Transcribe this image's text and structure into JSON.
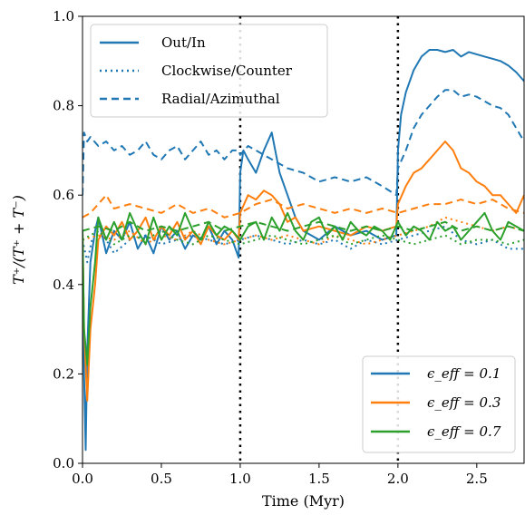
{
  "chart_data": {
    "type": "line",
    "xlabel": "Time (Myr)",
    "ylabel": "T⁺/(T⁺ + T⁻)",
    "xlim": [
      0,
      2.8
    ],
    "ylim": [
      0,
      1.0
    ],
    "x_ticks": [
      "0.0",
      "0.5",
      "1.0",
      "1.5",
      "2.0",
      "2.5"
    ],
    "y_ticks": [
      "0.0",
      "0.2",
      "0.4",
      "0.6",
      "0.8",
      "1.0"
    ],
    "grid": false,
    "vlines": [
      1.0,
      2.0
    ],
    "style_legend": {
      "placement": "top-left",
      "entries": [
        {
          "label": "Out/In",
          "dash": "solid"
        },
        {
          "label": "Clockwise/Counter",
          "dash": "dotted"
        },
        {
          "label": "Radial/Azimuthal",
          "dash": "dashed"
        }
      ]
    },
    "color_legend": {
      "placement": "bottom-right",
      "entries": [
        {
          "label": "ϵ_eff = 0.1",
          "color": "#1f77b4"
        },
        {
          "label": "ϵ_eff = 0.3",
          "color": "#ff7f0e"
        },
        {
          "label": "ϵ_eff = 0.7",
          "color": "#2ca02c"
        }
      ]
    },
    "series": [
      {
        "color": "#1f77b4",
        "dash": "solid",
        "x": [
          0.0,
          0.01,
          0.02,
          0.03,
          0.05,
          0.08,
          0.1,
          0.15,
          0.2,
          0.25,
          0.3,
          0.35,
          0.4,
          0.45,
          0.5,
          0.55,
          0.6,
          0.65,
          0.7,
          0.75,
          0.8,
          0.85,
          0.9,
          0.95,
          0.99,
          1.0,
          1.02,
          1.05,
          1.1,
          1.15,
          1.2,
          1.25,
          1.3,
          1.35,
          1.4,
          1.5,
          1.6,
          1.7,
          1.8,
          1.9,
          1.99,
          2.0,
          2.02,
          2.05,
          2.1,
          2.15,
          2.2,
          2.25,
          2.3,
          2.35,
          2.4,
          2.45,
          2.5,
          2.55,
          2.6,
          2.65,
          2.7,
          2.75,
          2.8
        ],
        "y": [
          0.52,
          0.2,
          0.03,
          0.25,
          0.45,
          0.52,
          0.55,
          0.47,
          0.52,
          0.5,
          0.54,
          0.48,
          0.51,
          0.47,
          0.53,
          0.5,
          0.52,
          0.48,
          0.51,
          0.5,
          0.53,
          0.49,
          0.52,
          0.5,
          0.46,
          0.65,
          0.7,
          0.68,
          0.65,
          0.7,
          0.74,
          0.65,
          0.6,
          0.55,
          0.52,
          0.5,
          0.53,
          0.51,
          0.52,
          0.5,
          0.51,
          0.7,
          0.78,
          0.83,
          0.88,
          0.91,
          0.925,
          0.925,
          0.92,
          0.925,
          0.91,
          0.92,
          0.915,
          0.91,
          0.905,
          0.9,
          0.89,
          0.875,
          0.855
        ]
      },
      {
        "color": "#1f77b4",
        "dash": "dotted",
        "x": [
          0.0,
          0.03,
          0.06,
          0.1,
          0.15,
          0.2,
          0.3,
          0.4,
          0.5,
          0.6,
          0.7,
          0.8,
          0.9,
          1.0,
          1.1,
          1.2,
          1.3,
          1.4,
          1.5,
          1.6,
          1.7,
          1.8,
          1.9,
          2.0,
          2.1,
          2.2,
          2.3,
          2.4,
          2.5,
          2.6,
          2.7,
          2.8
        ],
        "y": [
          0.5,
          0.45,
          0.5,
          0.52,
          0.5,
          0.47,
          0.5,
          0.51,
          0.49,
          0.5,
          0.51,
          0.5,
          0.49,
          0.5,
          0.51,
          0.5,
          0.49,
          0.5,
          0.49,
          0.5,
          0.48,
          0.5,
          0.49,
          0.5,
          0.51,
          0.52,
          0.53,
          0.5,
          0.49,
          0.5,
          0.48,
          0.48
        ]
      },
      {
        "color": "#1f77b4",
        "dash": "dashed",
        "x": [
          0.0,
          0.01,
          0.03,
          0.05,
          0.1,
          0.15,
          0.2,
          0.25,
          0.3,
          0.35,
          0.4,
          0.45,
          0.5,
          0.55,
          0.6,
          0.65,
          0.7,
          0.75,
          0.8,
          0.85,
          0.9,
          0.95,
          0.99,
          1.0,
          1.05,
          1.1,
          1.15,
          1.2,
          1.3,
          1.4,
          1.5,
          1.6,
          1.7,
          1.8,
          1.9,
          1.99,
          2.0,
          2.05,
          2.1,
          2.15,
          2.2,
          2.25,
          2.3,
          2.35,
          2.4,
          2.45,
          2.5,
          2.55,
          2.6,
          2.65,
          2.7,
          2.75,
          2.8
        ],
        "y": [
          0.6,
          0.74,
          0.72,
          0.73,
          0.71,
          0.72,
          0.7,
          0.71,
          0.69,
          0.7,
          0.72,
          0.69,
          0.68,
          0.7,
          0.71,
          0.68,
          0.7,
          0.72,
          0.69,
          0.7,
          0.68,
          0.7,
          0.7,
          0.69,
          0.71,
          0.7,
          0.69,
          0.68,
          0.66,
          0.65,
          0.63,
          0.64,
          0.63,
          0.64,
          0.62,
          0.6,
          0.66,
          0.7,
          0.75,
          0.78,
          0.8,
          0.82,
          0.835,
          0.835,
          0.82,
          0.825,
          0.82,
          0.81,
          0.8,
          0.795,
          0.78,
          0.75,
          0.72
        ]
      },
      {
        "color": "#ff7f0e",
        "dash": "solid",
        "x": [
          0.0,
          0.01,
          0.03,
          0.05,
          0.08,
          0.1,
          0.15,
          0.2,
          0.25,
          0.3,
          0.35,
          0.4,
          0.45,
          0.5,
          0.55,
          0.6,
          0.65,
          0.7,
          0.75,
          0.8,
          0.85,
          0.9,
          0.95,
          0.99,
          1.0,
          1.05,
          1.1,
          1.15,
          1.2,
          1.25,
          1.3,
          1.35,
          1.4,
          1.5,
          1.6,
          1.7,
          1.8,
          1.9,
          1.99,
          2.0,
          2.05,
          2.1,
          2.15,
          2.2,
          2.25,
          2.3,
          2.35,
          2.4,
          2.45,
          2.5,
          2.55,
          2.6,
          2.65,
          2.7,
          2.75,
          2.8
        ],
        "y": [
          0.52,
          0.3,
          0.14,
          0.3,
          0.4,
          0.5,
          0.53,
          0.51,
          0.54,
          0.5,
          0.52,
          0.55,
          0.5,
          0.53,
          0.51,
          0.54,
          0.5,
          0.52,
          0.49,
          0.53,
          0.51,
          0.5,
          0.52,
          0.5,
          0.56,
          0.6,
          0.59,
          0.61,
          0.6,
          0.58,
          0.54,
          0.55,
          0.52,
          0.53,
          0.52,
          0.51,
          0.53,
          0.52,
          0.53,
          0.58,
          0.62,
          0.65,
          0.66,
          0.68,
          0.7,
          0.72,
          0.7,
          0.66,
          0.65,
          0.63,
          0.62,
          0.6,
          0.6,
          0.58,
          0.56,
          0.6
        ]
      },
      {
        "color": "#ff7f0e",
        "dash": "dashed",
        "x": [
          0.0,
          0.05,
          0.1,
          0.15,
          0.2,
          0.3,
          0.4,
          0.5,
          0.6,
          0.7,
          0.8,
          0.9,
          1.0,
          1.1,
          1.2,
          1.3,
          1.4,
          1.5,
          1.6,
          1.7,
          1.8,
          1.9,
          2.0,
          2.1,
          2.2,
          2.3,
          2.4,
          2.5,
          2.6,
          2.7,
          2.8
        ],
        "y": [
          0.55,
          0.56,
          0.58,
          0.6,
          0.57,
          0.58,
          0.57,
          0.56,
          0.58,
          0.56,
          0.57,
          0.55,
          0.56,
          0.58,
          0.59,
          0.57,
          0.58,
          0.57,
          0.56,
          0.57,
          0.56,
          0.57,
          0.56,
          0.57,
          0.58,
          0.58,
          0.59,
          0.58,
          0.59,
          0.57,
          0.56
        ]
      },
      {
        "color": "#ff7f0e",
        "dash": "dotted",
        "x": [
          0.0,
          0.1,
          0.2,
          0.3,
          0.4,
          0.5,
          0.6,
          0.7,
          0.8,
          0.9,
          1.0,
          1.1,
          1.2,
          1.3,
          1.4,
          1.5,
          1.6,
          1.7,
          1.8,
          1.9,
          2.0,
          2.1,
          2.2,
          2.3,
          2.4,
          2.5,
          2.6,
          2.7,
          2.8
        ],
        "y": [
          0.5,
          0.51,
          0.5,
          0.52,
          0.49,
          0.51,
          0.5,
          0.52,
          0.5,
          0.49,
          0.5,
          0.51,
          0.5,
          0.51,
          0.5,
          0.49,
          0.51,
          0.5,
          0.49,
          0.5,
          0.51,
          0.52,
          0.53,
          0.55,
          0.54,
          0.53,
          0.52,
          0.53,
          0.52
        ]
      },
      {
        "color": "#2ca02c",
        "dash": "solid",
        "x": [
          0.0,
          0.01,
          0.03,
          0.05,
          0.08,
          0.1,
          0.15,
          0.2,
          0.25,
          0.3,
          0.35,
          0.4,
          0.45,
          0.5,
          0.55,
          0.6,
          0.65,
          0.7,
          0.75,
          0.8,
          0.85,
          0.9,
          0.95,
          1.0,
          1.05,
          1.1,
          1.15,
          1.2,
          1.25,
          1.3,
          1.35,
          1.4,
          1.45,
          1.5,
          1.55,
          1.6,
          1.65,
          1.7,
          1.75,
          1.8,
          1.85,
          1.9,
          1.95,
          2.0,
          2.05,
          2.1,
          2.15,
          2.2,
          2.25,
          2.3,
          2.35,
          2.4,
          2.45,
          2.5,
          2.55,
          2.6,
          2.65,
          2.7,
          2.75,
          2.8
        ],
        "y": [
          0.52,
          0.3,
          0.22,
          0.35,
          0.45,
          0.55,
          0.5,
          0.54,
          0.5,
          0.56,
          0.52,
          0.49,
          0.55,
          0.5,
          0.53,
          0.51,
          0.56,
          0.52,
          0.5,
          0.54,
          0.51,
          0.53,
          0.52,
          0.5,
          0.53,
          0.54,
          0.5,
          0.55,
          0.52,
          0.56,
          0.52,
          0.5,
          0.54,
          0.55,
          0.51,
          0.53,
          0.5,
          0.54,
          0.52,
          0.51,
          0.53,
          0.52,
          0.5,
          0.54,
          0.51,
          0.53,
          0.52,
          0.5,
          0.54,
          0.52,
          0.53,
          0.5,
          0.52,
          0.54,
          0.56,
          0.52,
          0.5,
          0.54,
          0.53,
          0.52
        ]
      },
      {
        "color": "#2ca02c",
        "dash": "dotted",
        "x": [
          0.0,
          0.1,
          0.2,
          0.3,
          0.4,
          0.5,
          0.6,
          0.7,
          0.8,
          0.9,
          1.0,
          1.1,
          1.2,
          1.3,
          1.4,
          1.5,
          1.6,
          1.7,
          1.8,
          1.9,
          2.0,
          2.1,
          2.2,
          2.3,
          2.4,
          2.5,
          2.6,
          2.7,
          2.8
        ],
        "y": [
          0.5,
          0.52,
          0.49,
          0.51,
          0.5,
          0.52,
          0.5,
          0.49,
          0.51,
          0.5,
          0.49,
          0.5,
          0.51,
          0.5,
          0.49,
          0.5,
          0.51,
          0.49,
          0.5,
          0.51,
          0.5,
          0.49,
          0.5,
          0.51,
          0.49,
          0.5,
          0.5,
          0.49,
          0.5
        ]
      },
      {
        "color": "#2ca02c",
        "dash": "dashed",
        "x": [
          0.0,
          0.1,
          0.2,
          0.3,
          0.4,
          0.5,
          0.6,
          0.7,
          0.8,
          0.9,
          1.0,
          1.1,
          1.2,
          1.3,
          1.4,
          1.5,
          1.6,
          1.7,
          1.8,
          1.9,
          2.0,
          2.1,
          2.2,
          2.3,
          2.4,
          2.5,
          2.6,
          2.7,
          2.8
        ],
        "y": [
          0.52,
          0.53,
          0.52,
          0.54,
          0.52,
          0.53,
          0.52,
          0.53,
          0.54,
          0.52,
          0.53,
          0.54,
          0.53,
          0.52,
          0.53,
          0.54,
          0.53,
          0.52,
          0.53,
          0.52,
          0.53,
          0.52,
          0.53,
          0.54,
          0.52,
          0.53,
          0.52,
          0.53,
          0.52
        ]
      }
    ]
  }
}
